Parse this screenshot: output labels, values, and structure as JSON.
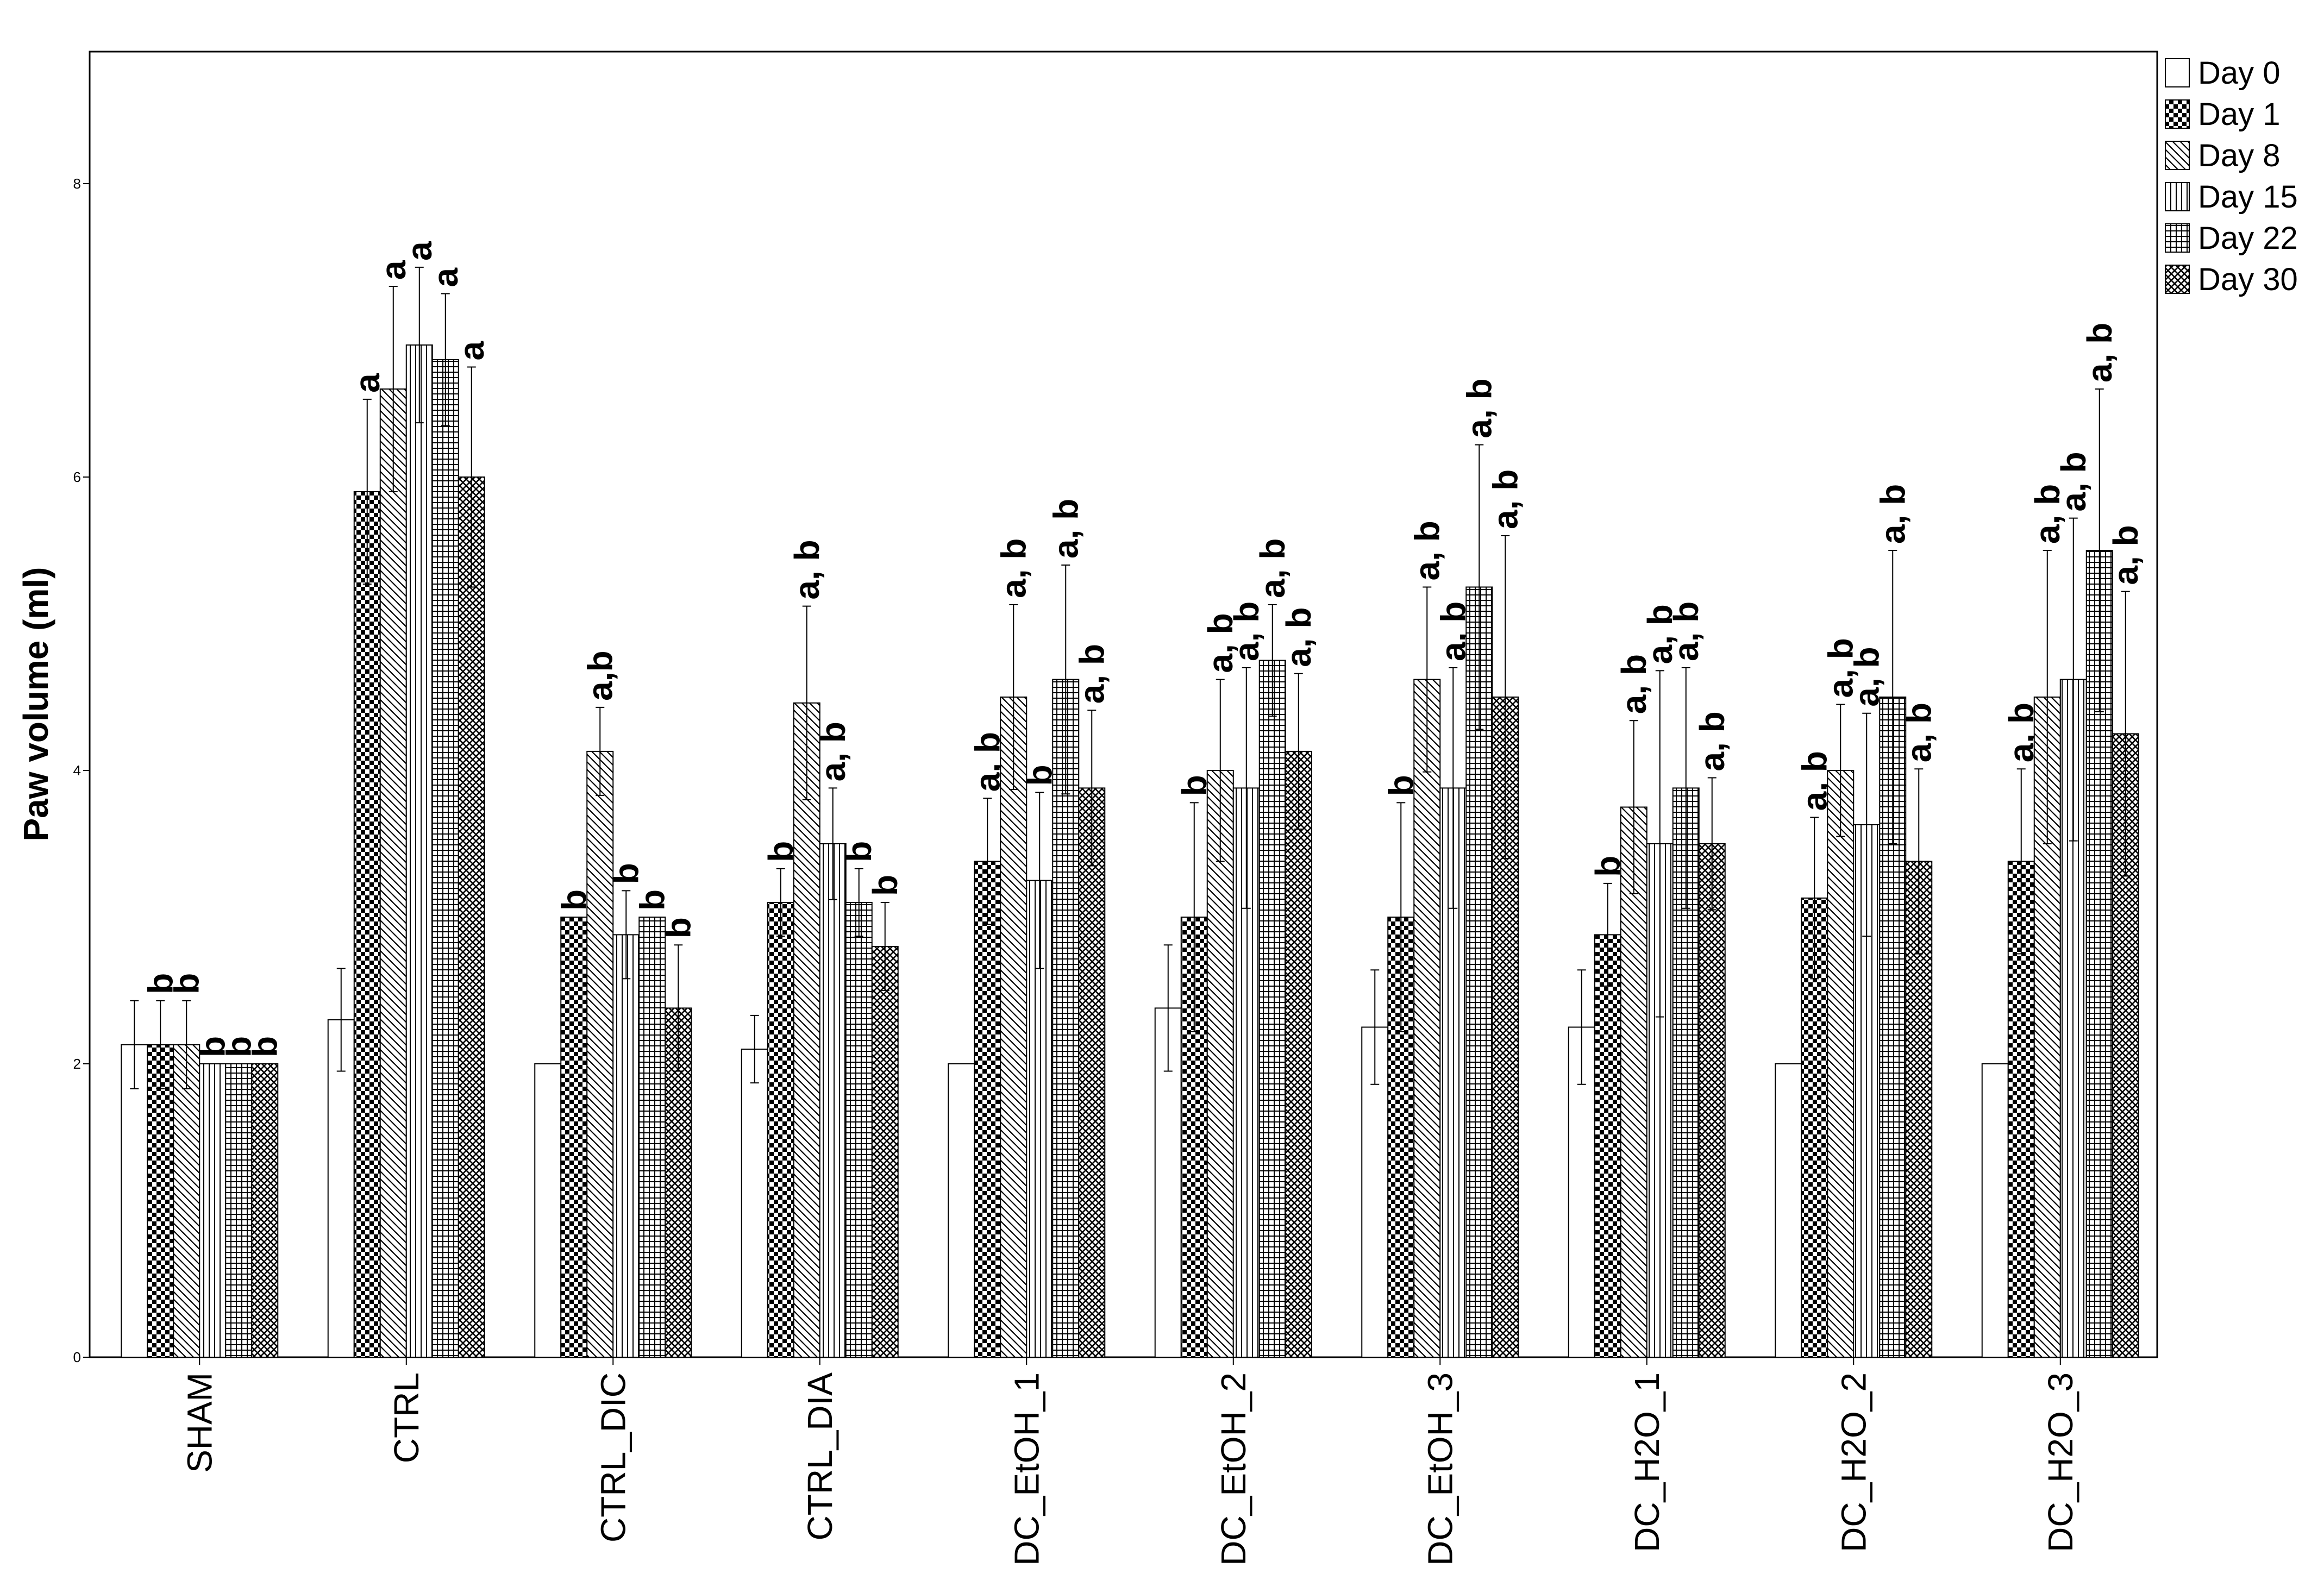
{
  "chart_data": {
    "type": "bar",
    "title": "",
    "xlabel": "",
    "ylabel": "Paw volume (ml)",
    "ylim": [
      0,
      8.9
    ],
    "yticks": [
      0,
      2,
      4,
      6,
      8
    ],
    "legend_position": "right",
    "categories": [
      "SHAM",
      "CTRL",
      "CTRL_DIC",
      "CTRL_DIA",
      "DC_EtOH_1",
      "DC_EtOH_2",
      "DC_EtOH_3",
      "DC_H2O_1",
      "DC_H2O_2",
      "DC_H2O_3"
    ],
    "series": [
      {
        "name": "Day 0",
        "pattern": "blank",
        "values": [
          2.13,
          2.3,
          2.0,
          2.1,
          2.0,
          2.38,
          2.25,
          2.25,
          2.0,
          2.0
        ],
        "errors": [
          0.3,
          0.35,
          0,
          0.23,
          0,
          0.43,
          0.39,
          0.39,
          0,
          0
        ],
        "labels": [
          "",
          "",
          "",
          "",
          "",
          "",
          "",
          "",
          "",
          ""
        ]
      },
      {
        "name": "Day 1",
        "pattern": "checker",
        "values": [
          2.13,
          5.9,
          3.0,
          3.1,
          3.38,
          3.0,
          3.0,
          2.88,
          3.13,
          3.38
        ],
        "errors": [
          0.3,
          0.63,
          0,
          0.23,
          0.43,
          0.78,
          0.78,
          0.35,
          0.55,
          0.63
        ],
        "labels": [
          "b",
          "a",
          "b",
          "b",
          "a, b",
          "b",
          "b",
          "b",
          "a, b",
          "a, b"
        ]
      },
      {
        "name": "Day 8",
        "pattern": "diag",
        "values": [
          2.13,
          6.6,
          4.13,
          4.46,
          4.5,
          4.0,
          4.62,
          3.75,
          4.0,
          4.5
        ],
        "errors": [
          0.3,
          0.7,
          0.3,
          0.66,
          0.63,
          0.62,
          0.63,
          0.59,
          0.45,
          1.0
        ],
        "labels": [
          "b",
          "a",
          "a,b",
          "a, b",
          "a, b",
          "a, b",
          "a, b",
          "a, b",
          "a, b",
          "a, b"
        ]
      },
      {
        "name": "Day 15",
        "pattern": "vlines",
        "values": [
          2.0,
          6.9,
          2.88,
          3.5,
          3.25,
          3.88,
          3.88,
          3.5,
          3.63,
          4.62
        ],
        "errors": [
          0,
          0.53,
          0.3,
          0.38,
          0.6,
          0.82,
          0.82,
          1.18,
          0.76,
          1.1
        ],
        "labels": [
          "b",
          "a",
          "b",
          "a, b",
          "b",
          "a, b",
          "a, b",
          "a, b",
          "a, b",
          "a, b"
        ]
      },
      {
        "name": "Day 22",
        "pattern": "grid",
        "values": [
          2.0,
          6.8,
          3.0,
          3.1,
          4.62,
          4.75,
          5.25,
          3.88,
          4.5,
          5.5
        ],
        "errors": [
          0,
          0.45,
          0,
          0.23,
          0.78,
          0.38,
          0.97,
          0.82,
          1.0,
          1.1
        ],
        "labels": [
          "b",
          "a",
          "b",
          "b",
          "a, b",
          "a, b",
          "a, b",
          "a, b",
          "a, b",
          "a, b"
        ]
      },
      {
        "name": "Day 30",
        "pattern": "crosshatch",
        "values": [
          2.0,
          6.0,
          2.38,
          2.8,
          3.88,
          4.13,
          4.5,
          3.5,
          3.38,
          4.25
        ],
        "errors": [
          0,
          0.75,
          0.43,
          0.3,
          0.53,
          0.53,
          1.1,
          0.45,
          0.63,
          0.97
        ],
        "labels": [
          "b",
          "a",
          "b",
          "b",
          "a, b",
          "a, b",
          "a, b",
          "a, b",
          "a, b",
          "a, b"
        ]
      }
    ]
  }
}
